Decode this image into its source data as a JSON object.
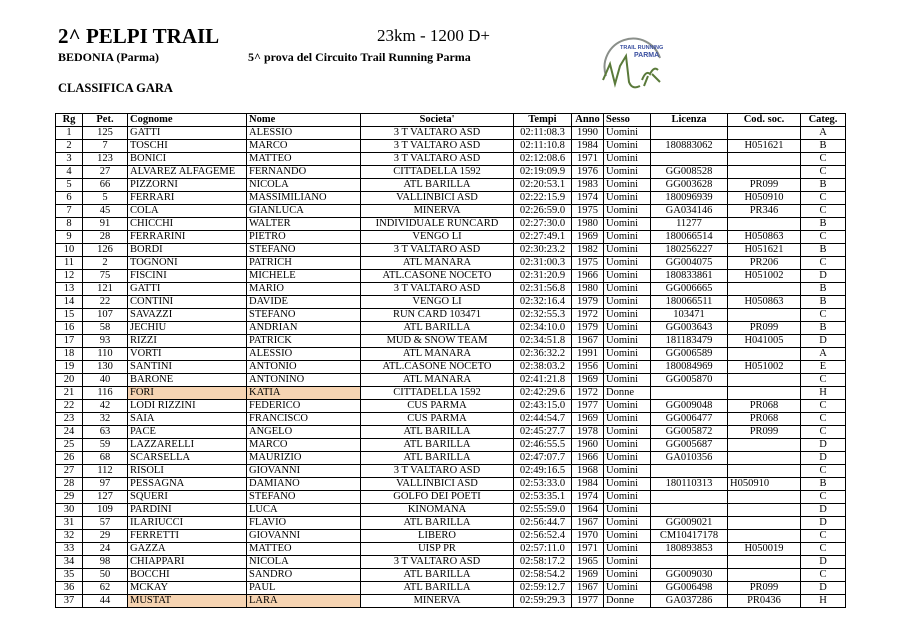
{
  "header": {
    "title": "2^ PELPI TRAIL",
    "place": "BEDONIA (Parma)",
    "distance": "23km - 1200 D+",
    "circuit": "5^ prova del Circuito Trail Running Parma",
    "subtitle": "CLASSIFICA GARA",
    "logo_text": [
      "TRAIL RUNNING",
      "PARMA"
    ]
  },
  "colors": {
    "highlight": "#f6d4b2",
    "logo_arc": "#8a8f8a",
    "logo_green": "#5a7a3a",
    "logo_blue": "#3a4fa0"
  },
  "table": {
    "columns": [
      "Rg",
      "Pet.",
      "Cognome",
      "Nome",
      "Societa'",
      "Tempi",
      "Anno",
      "Sesso",
      "Licenza",
      "Cod. soc.",
      "Categ."
    ],
    "rows": [
      {
        "cells": [
          "1",
          "125",
          "GATTI",
          "ALESSIO",
          "3 T VALTARO ASD",
          "02:11:08.3",
          "1990",
          "Uomini",
          "",
          "",
          "A"
        ]
      },
      {
        "cells": [
          "2",
          "7",
          "TOSCHI",
          "MARCO",
          "3 T VALTARO ASD",
          "02:11:10.8",
          "1984",
          "Uomini",
          "180883062",
          "H051621",
          "B"
        ]
      },
      {
        "cells": [
          "3",
          "123",
          "BONICI",
          "MATTEO",
          "3 T VALTARO ASD",
          "02:12:08.6",
          "1971",
          "Uomini",
          "",
          "",
          "C"
        ]
      },
      {
        "cells": [
          "4",
          "27",
          "ALVAREZ ALFAGEME",
          "FERNANDO",
          "CITTADELLA 1592",
          "02:19:09.9",
          "1976",
          "Uomini",
          "GG008528",
          "",
          "C"
        ]
      },
      {
        "cells": [
          "5",
          "66",
          "PIZZORNI",
          "NICOLA",
          "ATL BARILLA",
          "02:20:53.1",
          "1983",
          "Uomini",
          "GG003628",
          "PR099",
          "B"
        ]
      },
      {
        "cells": [
          "6",
          "5",
          "FERRARI",
          "MASSIMILIANO",
          "VALLINBICI ASD",
          "02:22:15.9",
          "1974",
          "Uomini",
          "180096939",
          "H050910",
          "C"
        ]
      },
      {
        "cells": [
          "7",
          "45",
          "COLA",
          "GIANLUCA",
          "MINERVA",
          "02:26:59.0",
          "1975",
          "Uomini",
          "GA034146",
          "PR346",
          "C"
        ]
      },
      {
        "cells": [
          "8",
          "91",
          "CHICCHI",
          "WALTER",
          "INDIVIDUALE RUNCARD",
          "02:27:30.0",
          "1980",
          "Uomini",
          "11277",
          "",
          "B"
        ]
      },
      {
        "cells": [
          "9",
          "28",
          "FERRARINI",
          "PIETRO",
          "VENGO LI",
          "02:27:49.1",
          "1969",
          "Uomini",
          "180066514",
          "H050863",
          "C"
        ]
      },
      {
        "cells": [
          "10",
          "126",
          "BORDI",
          "STEFANO",
          "3 T VALTARO ASD",
          "02:30:23.2",
          "1982",
          "Uomini",
          "180256227",
          "H051621",
          "B"
        ]
      },
      {
        "cells": [
          "11",
          "2",
          "TOGNONI",
          "PATRICH",
          "ATL MANARA",
          "02:31:00.3",
          "1975",
          "Uomini",
          "GG004075",
          "PR206",
          "C"
        ]
      },
      {
        "cells": [
          "12",
          "75",
          "FISCINI",
          "MICHELE",
          "ATL.CASONE NOCETO",
          "02:31:20.9",
          "1966",
          "Uomini",
          "180833861",
          "H051002",
          "D"
        ]
      },
      {
        "cells": [
          "13",
          "121",
          "GATTI",
          "MARIO",
          "3 T VALTARO ASD",
          "02:31:56.8",
          "1980",
          "Uomini",
          "GG006665",
          "",
          "B"
        ]
      },
      {
        "cells": [
          "14",
          "22",
          "CONTINI",
          "DAVIDE",
          "VENGO LI",
          "02:32:16.4",
          "1979",
          "Uomini",
          "180066511",
          "H050863",
          "B"
        ]
      },
      {
        "cells": [
          "15",
          "107",
          "SAVAZZI",
          "STEFANO",
          "RUN CARD 103471",
          "02:32:55.3",
          "1972",
          "Uomini",
          "103471",
          "",
          "C"
        ]
      },
      {
        "cells": [
          "16",
          "58",
          "JECHIU",
          "ANDRIAN",
          "ATL BARILLA",
          "02:34:10.0",
          "1979",
          "Uomini",
          "GG003643",
          "PR099",
          "B"
        ]
      },
      {
        "cells": [
          "17",
          "93",
          "RIZZI",
          "PATRICK",
          "MUD & SNOW TEAM",
          "02:34:51.8",
          "1967",
          "Uomini",
          "181183479",
          "H041005",
          "D"
        ]
      },
      {
        "cells": [
          "18",
          "110",
          "VORTI",
          "ALESSIO",
          "ATL MANARA",
          "02:36:32.2",
          "1991",
          "Uomini",
          "GG006589",
          "",
          "A"
        ]
      },
      {
        "cells": [
          "19",
          "130",
          "SANTINI",
          "ANTONIO",
          "ATL.CASONE NOCETO",
          "02:38:03.2",
          "1956",
          "Uomini",
          "180084969",
          "H051002",
          "E"
        ]
      },
      {
        "cells": [
          "20",
          "40",
          "BARONE",
          "ANTONINO",
          "ATL MANARA",
          "02:41:21.8",
          "1969",
          "Uomini",
          "GG005870",
          "",
          "C"
        ]
      },
      {
        "cells": [
          "21",
          "116",
          "FORI",
          "KATIA",
          "CITTADELLA 1592",
          "02:42:29.6",
          "1972",
          "Donne",
          "",
          "",
          "H"
        ],
        "highlight": true
      },
      {
        "cells": [
          "22",
          "42",
          "LODI RIZZINI",
          "FEDERICO",
          "CUS PARMA",
          "02:43:15.0",
          "1977",
          "Uomini",
          "GG009048",
          "PR068",
          "C"
        ]
      },
      {
        "cells": [
          "23",
          "32",
          "SAIA",
          "FRANCISCO",
          "CUS PARMA",
          "02:44:54.7",
          "1969",
          "Uomini",
          "GG006477",
          "PR068",
          "C"
        ]
      },
      {
        "cells": [
          "24",
          "63",
          "PACE",
          "ANGELO",
          "ATL BARILLA",
          "02:45:27.7",
          "1978",
          "Uomini",
          "GG005872",
          "PR099",
          "C"
        ]
      },
      {
        "cells": [
          "25",
          "59",
          "LAZZARELLI",
          "MARCO",
          "ATL BARILLA",
          "02:46:55.5",
          "1960",
          "Uomini",
          "GG005687",
          "",
          "D"
        ]
      },
      {
        "cells": [
          "26",
          "68",
          "SCARSELLA",
          "MAURIZIO",
          "ATL BARILLA",
          "02:47:07.7",
          "1966",
          "Uomini",
          "GA010356",
          "",
          "D"
        ]
      },
      {
        "cells": [
          "27",
          "112",
          "RISOLI",
          "GIOVANNI",
          "3 T VALTARO ASD",
          "02:49:16.5",
          "1968",
          "Uomini",
          "",
          "",
          "C"
        ]
      },
      {
        "cells": [
          "28",
          "97",
          "PESSAGNA",
          "DAMIANO",
          "VALLINBICI ASD",
          "02:53:33.0",
          "1984",
          "Uomini",
          "180110313",
          "H050910",
          "B"
        ]
      },
      {
        "cells": [
          "29",
          "127",
          "SQUERI",
          "STEFANO",
          "GOLFO DEI POETI",
          "02:53:35.1",
          "1974",
          "Uomini",
          "",
          "",
          "C"
        ]
      },
      {
        "cells": [
          "30",
          "109",
          "PARDINI",
          "LUCA",
          "KINOMANA",
          "02:55:59.0",
          "1964",
          "Uomini",
          "",
          "",
          "D"
        ]
      },
      {
        "cells": [
          "31",
          "57",
          "ILARIUCCI",
          "FLAVIO",
          "ATL BARILLA",
          "02:56:44.7",
          "1967",
          "Uomini",
          "GG009021",
          "",
          "D"
        ]
      },
      {
        "cells": [
          "32",
          "29",
          "FERRETTI",
          "GIOVANNI",
          "LIBERO",
          "02:56:52.4",
          "1970",
          "Uomini",
          "CM10417178",
          "",
          "C"
        ]
      },
      {
        "cells": [
          "33",
          "24",
          "GAZZA",
          "MATTEO",
          "UISP PR",
          "02:57:11.0",
          "1971",
          "Uomini",
          "180893853",
          "H050019",
          "C"
        ]
      },
      {
        "cells": [
          "34",
          "98",
          "CHIAPPARI",
          "NICOLA",
          "3 T VALTARO ASD",
          "02:58:17.2",
          "1965",
          "Uomini",
          "",
          "",
          "D"
        ]
      },
      {
        "cells": [
          "35",
          "50",
          "BOCCHI",
          "SANDRO",
          "ATL BARILLA",
          "02:58:54.2",
          "1969",
          "Uomini",
          "GG009030",
          "",
          "C"
        ]
      },
      {
        "cells": [
          "36",
          "62",
          "MCKAY",
          "PAUL",
          "ATL BARILLA",
          "02:59:12.7",
          "1967",
          "Uomini",
          "GG006498",
          "PR099",
          "D"
        ]
      },
      {
        "cells": [
          "37",
          "44",
          "MUSTAT",
          "LARA",
          "MINERVA",
          "02:59:29.3",
          "1977",
          "Donne",
          "GA037286",
          "PR0436",
          "H"
        ],
        "highlight": true
      }
    ]
  }
}
